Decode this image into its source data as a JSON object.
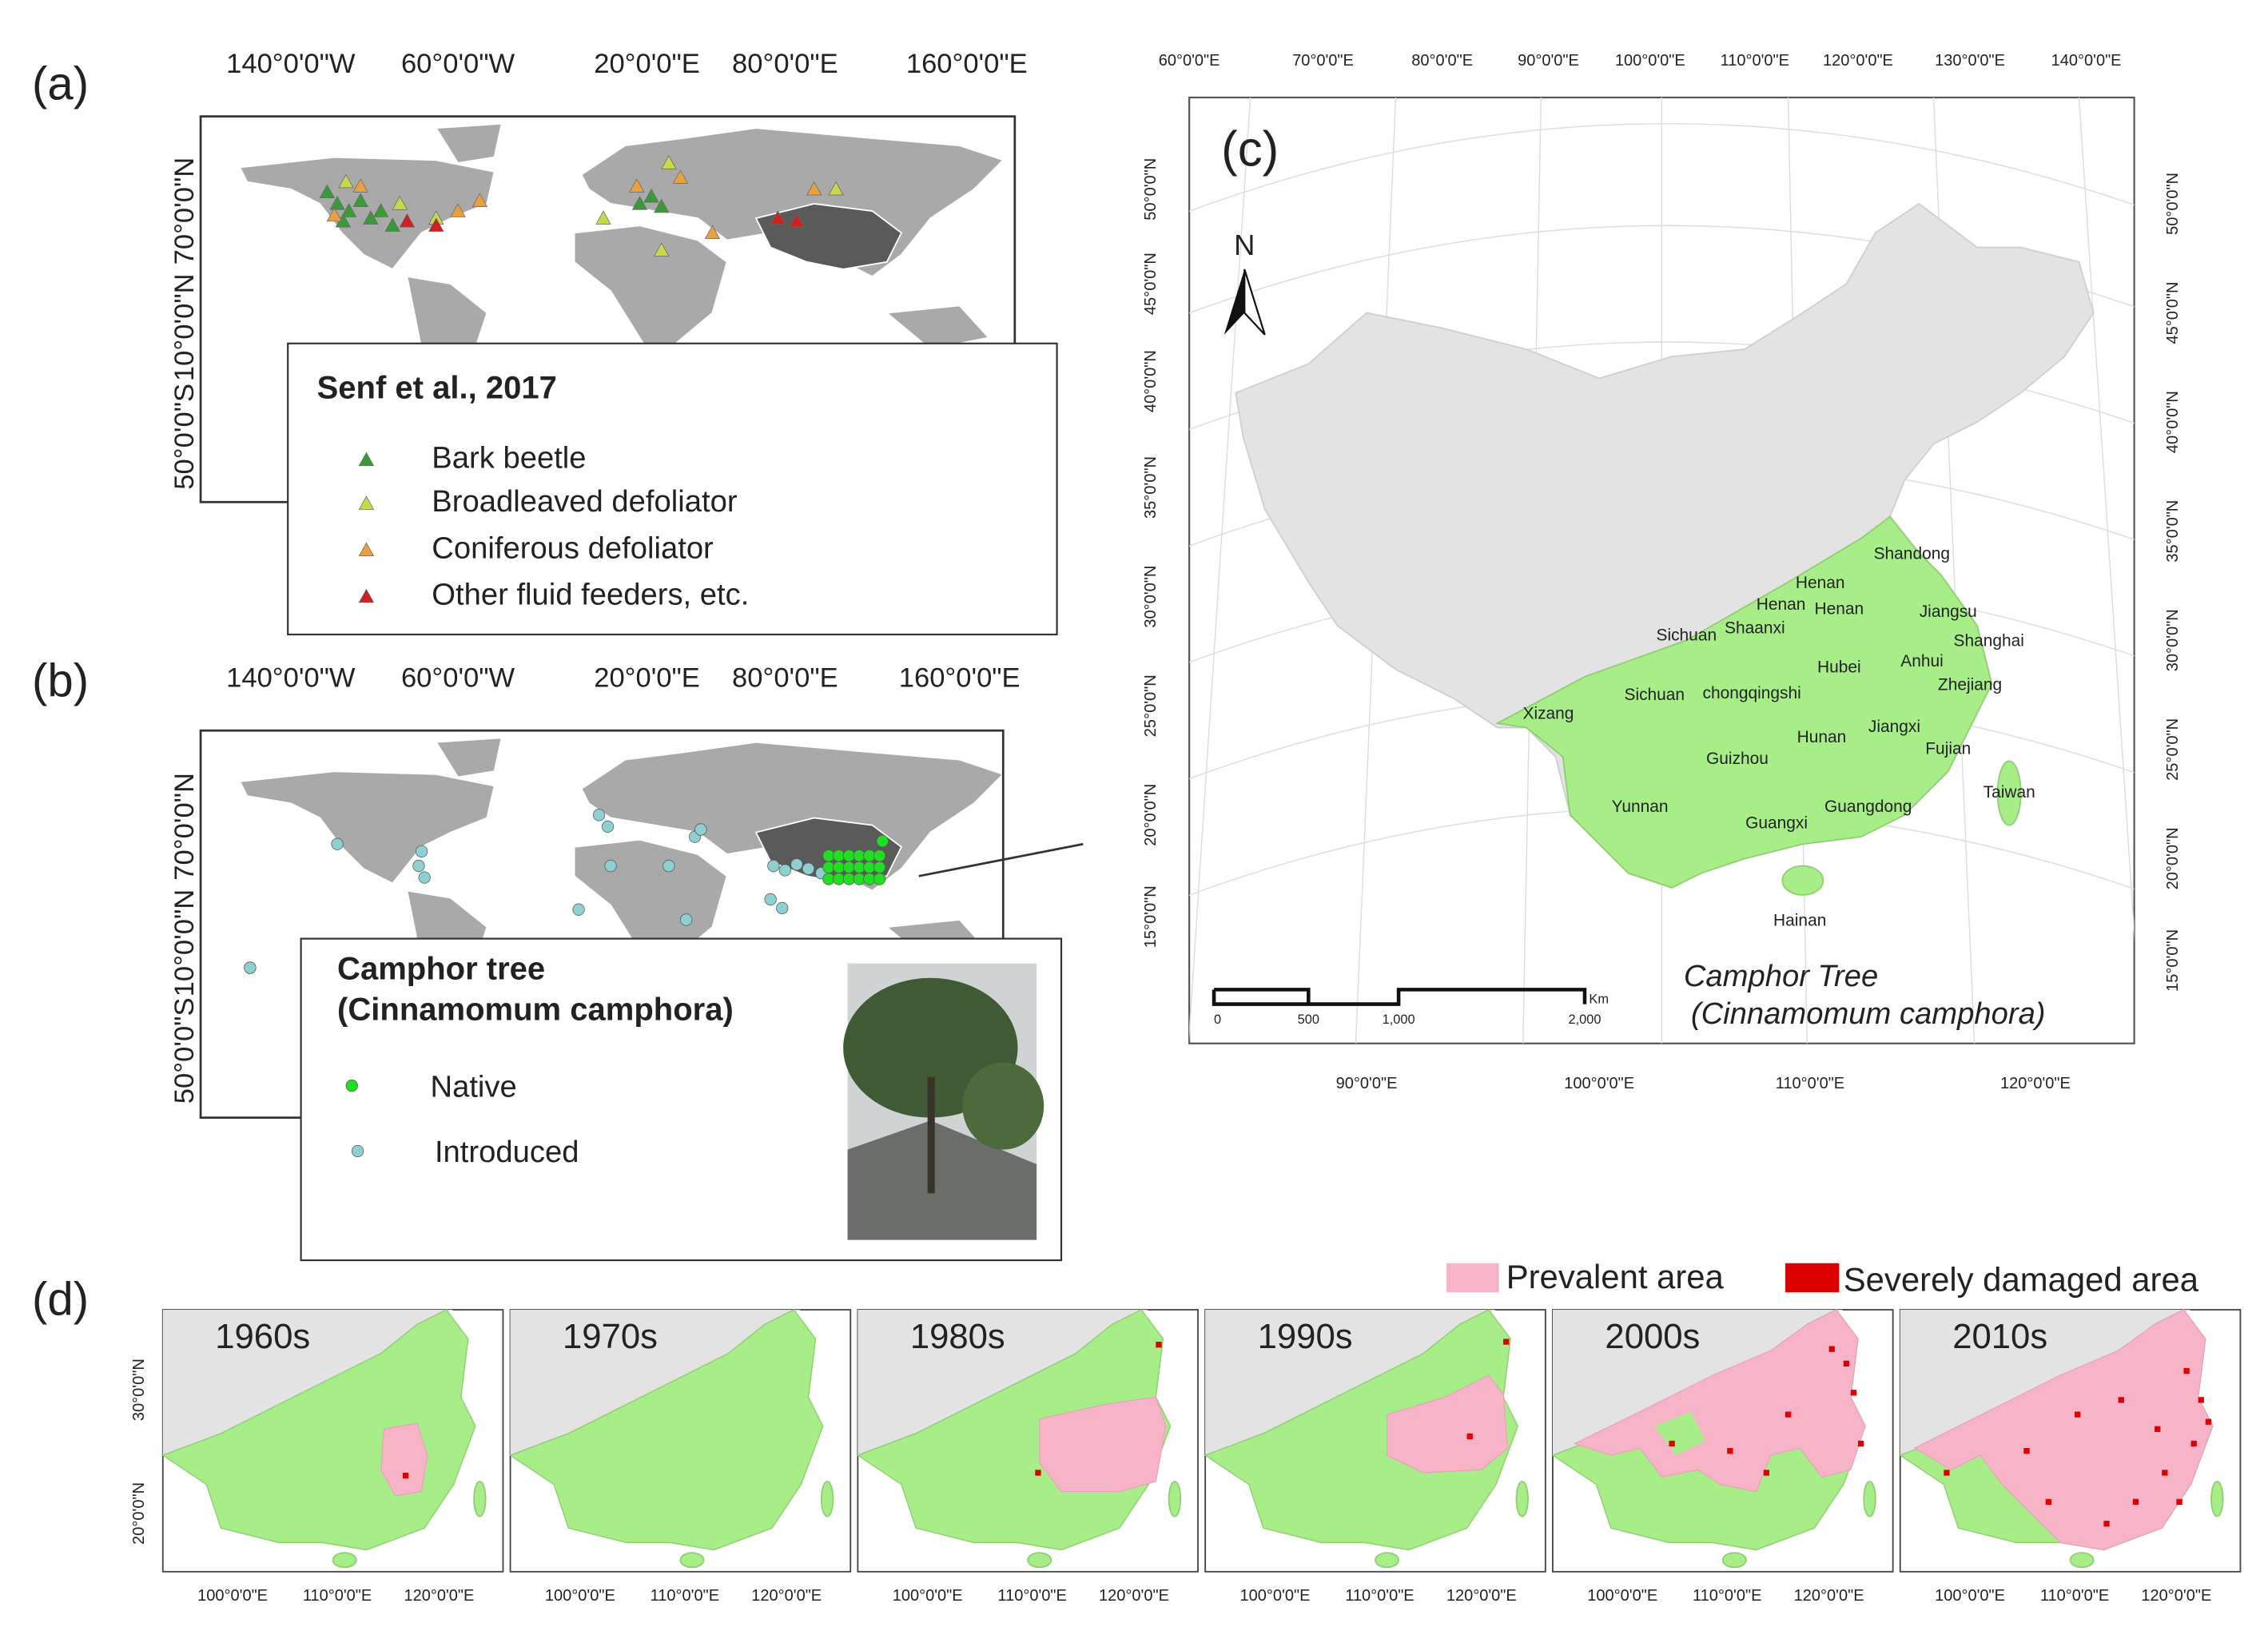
{
  "panel_a": {
    "label": "(a)",
    "lon_labels": [
      "140°0'0\"W",
      "60°0'0\"W",
      "20°0'0\"E",
      "80°0'0\"E",
      "160°0'0\"E"
    ],
    "lat_labels": [
      "70°0'0\"N",
      "10°0'0\"N",
      "50°0'0\"S"
    ],
    "legend": {
      "title": "Senf et al., 2017",
      "items": [
        "Bark beetle",
        "Broadleaved defoliator",
        "Coniferous defoliator",
        "Other fluid feeders, etc."
      ]
    }
  },
  "panel_b": {
    "label": "(b)",
    "lon_labels": [
      "140°0'0\"W",
      "60°0'0\"W",
      "20°0'0\"E",
      "80°0'0\"E",
      "160°0'0\"E"
    ],
    "lat_labels": [
      "70°0'0\"N",
      "10°0'0\"N",
      "50°0'0\"S"
    ],
    "legend": {
      "title_lines": [
        "Camphor tree",
        "(Cinnamomum camphora)"
      ],
      "items": [
        "Native",
        "Introduced"
      ]
    }
  },
  "panel_c": {
    "label": "(c)",
    "top_lon_labels": [
      "60°0'0\"E",
      "70°0'0\"E",
      "80°0'0\"E",
      "90°0'0\"E",
      "100°0'0\"E",
      "110°0'0\"E",
      "120°0'0\"E",
      "130°0'0\"E",
      "140°0'0\"E"
    ],
    "bottom_lon_labels": [
      "90°0'0\"E",
      "100°0'0\"E",
      "110°0'0\"E",
      "120°0'0\"E"
    ],
    "left_lat_labels": [
      "50°0'0\"N",
      "45°0'0\"N",
      "40°0'0\"N",
      "35°0'0\"N",
      "30°0'0\"N",
      "25°0'0\"N",
      "20°0'0\"N",
      "15°0'0\"N"
    ],
    "right_lat_labels": [
      "50°0'0\"N",
      "45°0'0\"N",
      "40°0'0\"N",
      "35°0'0\"N",
      "30°0'0\"N",
      "25°0'0\"N",
      "20°0'0\"N",
      "15°0'0\"N"
    ],
    "north": "N",
    "scale_labels": [
      "0",
      "500",
      "1,000",
      "2,000"
    ],
    "scale_unit": "Km",
    "title_lines": [
      "Camphor Tree",
      "(Cinnamomum camphora)"
    ],
    "provinces": [
      "Shandong",
      "Henan",
      "Henan",
      "Henan",
      "Jiangsu",
      "Sichuan",
      "Shaanxi",
      "Shanghai",
      "Hubei",
      "Anhui",
      "Zhejiang",
      "Xizang",
      "Sichuan",
      "chongqingshi",
      "Jiangxi",
      "Hunan",
      "Fujian",
      "Guizhou",
      "Taiwan",
      "Yunnan",
      "Guangdong",
      "Guangxi",
      "Hainan"
    ]
  },
  "panel_d": {
    "label": "(d)",
    "legend": [
      "Prevalent area",
      "Severely damaged area"
    ],
    "decades": [
      "1960s",
      "1970s",
      "1980s",
      "1990s",
      "2000s",
      "2010s"
    ],
    "lon_labels": [
      "100°0'0\"E",
      "110°0'0\"E",
      "120°0'0\"E"
    ],
    "lat_labels": [
      "30°0'0\"N",
      "20°0'0\"N"
    ]
  }
}
